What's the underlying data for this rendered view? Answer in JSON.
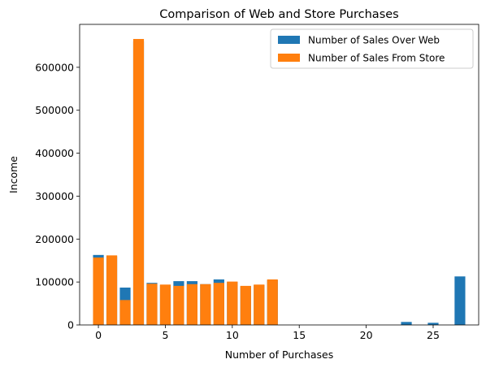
{
  "chart_data": {
    "type": "bar",
    "title": "Comparison of Web and Store Purchases",
    "xlabel": "Number of Purchases",
    "ylabel": "Income",
    "xlim": [
      -1.4,
      28.4
    ],
    "ylim": [
      0,
      700000
    ],
    "xticks": [
      0,
      5,
      10,
      15,
      20,
      25
    ],
    "yticks": [
      0,
      100000,
      200000,
      300000,
      400000,
      500000,
      600000
    ],
    "grid": false,
    "legend_position": "top-right",
    "colors": {
      "web": "#1f77b4",
      "store": "#ff7f0e"
    },
    "series": [
      {
        "name": "Number of Sales Over Web",
        "x": [
          0,
          1,
          2,
          3,
          4,
          5,
          6,
          7,
          8,
          9,
          10,
          11,
          12,
          13,
          23,
          25,
          27
        ],
        "values": [
          163000,
          160000,
          87000,
          660000,
          98000,
          93000,
          102000,
          102000,
          95000,
          106000,
          100000,
          90000,
          93000,
          104000,
          7000,
          5000,
          113000
        ]
      },
      {
        "name": "Number of Sales From Store",
        "x": [
          0,
          1,
          2,
          3,
          4,
          5,
          6,
          7,
          8,
          9,
          10,
          11,
          12,
          13
        ],
        "values": [
          157000,
          162000,
          58000,
          666000,
          96000,
          94000,
          91000,
          95000,
          95000,
          98000,
          101000,
          91000,
          94000,
          106000
        ]
      }
    ]
  }
}
